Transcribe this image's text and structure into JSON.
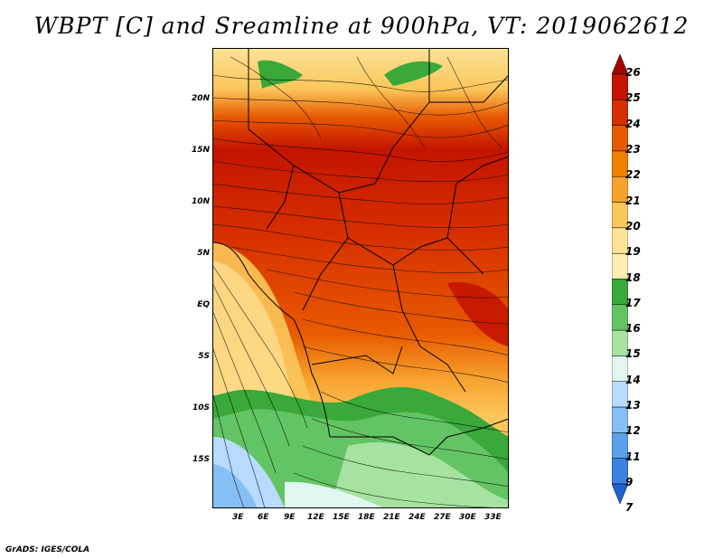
{
  "title": "WBPT [C] and Sreamline at 900hPa, VT: 2019062612",
  "lat_ticks": [
    "20N",
    "15N",
    "10N",
    "5N",
    "EQ",
    "5S",
    "10S",
    "15S"
  ],
  "lon_ticks": [
    "3E",
    "6E",
    "9E",
    "12E",
    "15E",
    "18E",
    "21E",
    "24E",
    "27E",
    "30E",
    "33E"
  ],
  "colorbar": {
    "labels": [
      "26",
      "25",
      "24",
      "23",
      "22",
      "21",
      "20",
      "19",
      "18",
      "17",
      "16",
      "15",
      "14",
      "13",
      "12",
      "11",
      "9",
      "7"
    ],
    "colors": [
      "#a50000",
      "#c41400",
      "#d62f00",
      "#e85a00",
      "#f07f00",
      "#f7a22e",
      "#fbc65a",
      "#fde398",
      "#ffeeb0",
      "#3aa83a",
      "#63c463",
      "#a6e3a0",
      "#e0f7f0",
      "#b7dcff",
      "#86bff5",
      "#5ba0ea",
      "#3b82e0",
      "#1f62d4"
    ]
  },
  "footer": "GrADS: IGES/COLA"
}
